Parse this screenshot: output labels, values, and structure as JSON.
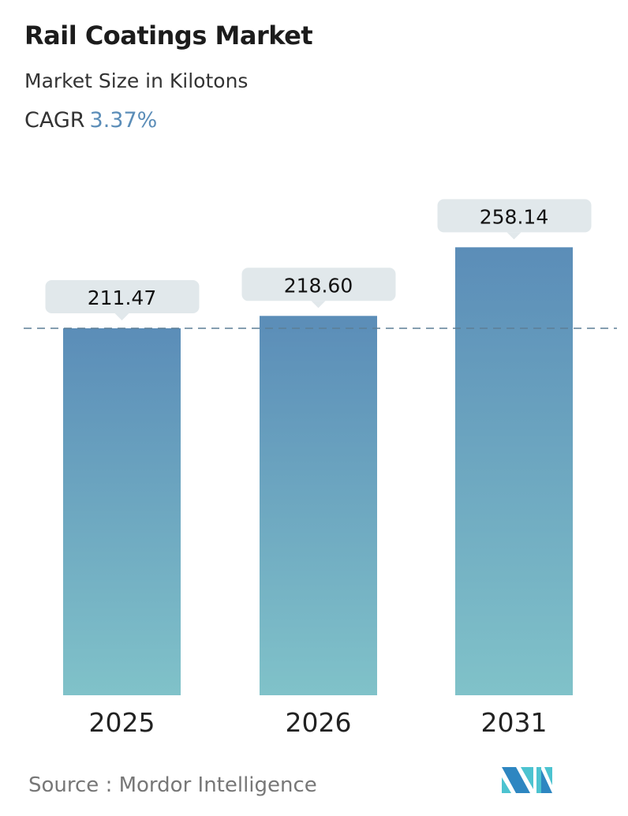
{
  "header": {
    "title": "Rail Coatings Market",
    "subtitle": "Market Size in Kilotons",
    "cagr_label": "CAGR",
    "cagr_value": "3.37%"
  },
  "chart_data": {
    "type": "bar",
    "categories": [
      "2025",
      "2026",
      "2031"
    ],
    "values": [
      211.47,
      218.6,
      258.14
    ],
    "data_labels": [
      "211.47",
      "218.60",
      "258.14"
    ],
    "reference_line": {
      "value": 211.47,
      "style": "dashed"
    },
    "grid": false,
    "colors": {
      "bar_top": "#5b8db8",
      "bar_bottom": "#80c2c9",
      "label_box": "#e1e8eb",
      "reference_line": "#5d7f96"
    }
  },
  "footer": {
    "source": "Source :  Mordor Intelligence",
    "logo_text": "Mordor Intelligence"
  }
}
